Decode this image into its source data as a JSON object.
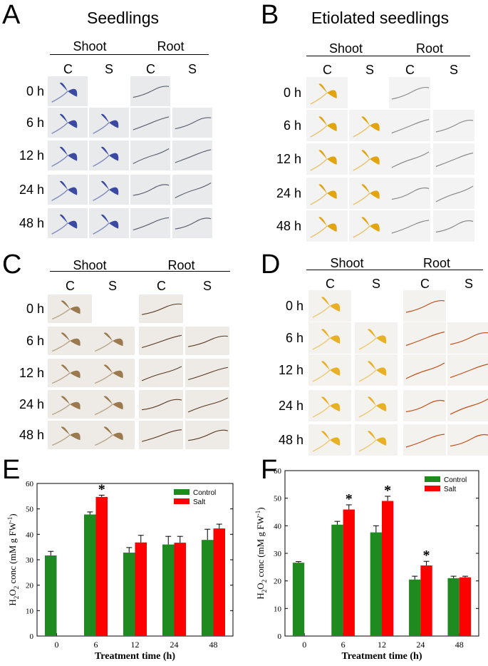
{
  "panels": {
    "A": {
      "letter": "A",
      "title": "Seedlings"
    },
    "B": {
      "letter": "B",
      "title": "Etiolated seedlings"
    },
    "C": {
      "letter": "C",
      "title": ""
    },
    "D": {
      "letter": "D",
      "title": ""
    },
    "E": {
      "letter": "E"
    },
    "F": {
      "letter": "F"
    }
  },
  "headers": {
    "shoot": "Shoot",
    "root": "Root",
    "control": "C",
    "salt": "S"
  },
  "rows": [
    "0 h",
    "6 h",
    "12 h",
    "24 h",
    "48 h"
  ],
  "stain_colors": {
    "A": {
      "shoot": "#3b4aa0",
      "root": "#5a5f70",
      "bg": "#e9eaec"
    },
    "B": {
      "shoot": "#e2a40f",
      "root": "#8a8a8a",
      "bg": "#f3f3f3"
    },
    "C": {
      "shoot": "#9a7a4e",
      "root": "#5a3a22",
      "bg": "#eeebe6"
    },
    "D": {
      "shoot": "#e8b024",
      "root": "#c0501a",
      "bg": "#f4f2ee"
    }
  },
  "chart_data": [
    {
      "panel": "E",
      "type": "bar",
      "categories": [
        "0",
        "6",
        "12",
        "24",
        "48"
      ],
      "series": [
        {
          "name": "Control",
          "color": "#1f8a1f",
          "values": [
            31.7,
            47.8,
            32.8,
            36.0,
            37.8
          ],
          "errors": [
            1.6,
            1.0,
            2.0,
            3.2,
            4.2
          ]
        },
        {
          "name": "Salt",
          "color": "#ff0000",
          "values": [
            null,
            54.7,
            36.8,
            36.7,
            42.3
          ],
          "errors": [
            null,
            0.7,
            2.8,
            2.5,
            1.7
          ]
        }
      ],
      "significance": [
        {
          "category": "6",
          "series": "Salt",
          "mark": "*"
        }
      ],
      "xlabel": "Treatment time (h)",
      "ylabel": "H2O2 conc (mM g FW-1)",
      "ylim": [
        0,
        60
      ],
      "yticks": [
        0,
        10,
        20,
        30,
        40,
        50,
        60
      ],
      "legend": "top-right"
    },
    {
      "panel": "F",
      "type": "bar",
      "categories": [
        "0",
        "6",
        "12",
        "24",
        "48"
      ],
      "series": [
        {
          "name": "Control",
          "color": "#1f8a1f",
          "values": [
            26.6,
            40.4,
            37.6,
            20.5,
            21.0
          ],
          "errors": [
            0.4,
            1.2,
            2.4,
            1.2,
            0.7
          ]
        },
        {
          "name": "Salt",
          "color": "#ff0000",
          "values": [
            null,
            45.9,
            49.0,
            25.6,
            21.3
          ],
          "errors": [
            null,
            1.7,
            1.7,
            1.5,
            0.4
          ]
        }
      ],
      "significance": [
        {
          "category": "6",
          "series": "Salt",
          "mark": "*"
        },
        {
          "category": "12",
          "series": "Salt",
          "mark": "*"
        },
        {
          "category": "24",
          "series": "Salt",
          "mark": "*"
        }
      ],
      "xlabel": "Treatment time (h)",
      "ylabel": "H2O2 conc (mM g FW-1)",
      "ylim": [
        0,
        60
      ],
      "yticks": [
        0,
        10,
        20,
        30,
        40,
        50,
        60
      ],
      "legend": "top-right"
    }
  ]
}
